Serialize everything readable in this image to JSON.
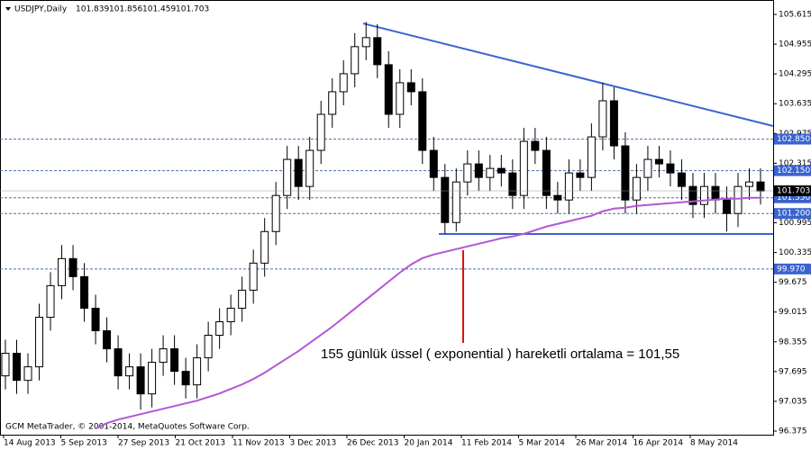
{
  "chart_data": {
    "type": "candlestick",
    "title": "USDJPY,Daily",
    "header_values": [
      101.839,
      101.856,
      101.459,
      101.703
    ],
    "copyright": "GCM MetaTrader, © 2001-2014, MetaQuotes Software Corp.",
    "annotation": "155 günlük üssel ( exponential ) hareketli ortalama = 101,55",
    "xlabels": [
      "14 Aug 2013",
      "5 Sep 2013",
      "27 Sep 2013",
      "21 Oct 2013",
      "11 Nov 2013",
      "3 Dec 2013",
      "26 Dec 2013",
      "20 Jan 2014",
      "11 Feb 2014",
      "5 Mar 2014",
      "26 Mar 2014",
      "16 Apr 2014",
      "8 May 2014"
    ],
    "ylim": [
      96.295,
      105.835
    ],
    "yticks": [
      105.615,
      104.955,
      104.295,
      103.635,
      102.975,
      102.315,
      101.655,
      100.995,
      100.335,
      99.675,
      99.015,
      98.355,
      97.695,
      97.035,
      96.375
    ],
    "open": [
      97.6,
      98.1,
      97.5,
      97.8,
      98.9,
      99.6,
      100.2,
      99.8,
      99.1,
      98.6,
      98.2,
      97.6,
      97.8,
      97.2,
      97.9,
      98.2,
      97.7,
      97.4,
      98.0,
      98.5,
      98.8,
      99.1,
      99.5,
      100.1,
      100.8,
      101.6,
      102.4,
      101.8,
      102.6,
      103.4,
      103.9,
      104.3,
      104.9,
      105.1,
      104.5,
      103.4,
      104.1,
      103.9,
      102.6,
      102.0,
      101.0,
      101.9,
      102.3,
      102.0,
      102.2,
      102.1,
      101.6,
      102.8,
      102.6,
      101.6,
      101.5,
      102.1,
      102.0,
      102.9,
      103.7,
      102.7,
      101.5,
      102.0,
      102.4,
      102.3,
      102.1,
      101.8,
      101.4,
      101.8,
      101.5,
      101.2,
      101.8,
      101.9
    ],
    "high": [
      98.4,
      98.4,
      98.1,
      99.2,
      99.9,
      100.5,
      100.5,
      100.1,
      99.4,
      98.9,
      98.5,
      98.1,
      98.1,
      98.2,
      98.5,
      98.5,
      98.0,
      98.3,
      98.8,
      99.1,
      99.4,
      99.8,
      100.4,
      101.1,
      101.9,
      102.7,
      102.7,
      102.9,
      103.7,
      104.2,
      104.6,
      105.2,
      105.45,
      105.4,
      104.8,
      104.4,
      104.4,
      104.2,
      102.9,
      102.3,
      102.2,
      102.6,
      102.6,
      102.5,
      102.5,
      102.4,
      103.1,
      103.1,
      102.9,
      101.9,
      102.4,
      102.4,
      103.2,
      104.1,
      104.0,
      103.0,
      102.3,
      102.7,
      102.7,
      102.6,
      102.4,
      102.1,
      102.1,
      102.1,
      101.8,
      102.1,
      102.2,
      102.2
    ],
    "low": [
      97.3,
      97.2,
      97.2,
      97.5,
      98.6,
      99.3,
      99.5,
      98.8,
      98.3,
      97.9,
      97.3,
      97.3,
      96.85,
      96.9,
      97.6,
      97.4,
      97.1,
      97.1,
      97.7,
      98.2,
      98.5,
      98.8,
      99.2,
      99.8,
      100.5,
      101.3,
      101.5,
      101.5,
      102.3,
      103.1,
      103.6,
      104.0,
      104.6,
      104.2,
      103.1,
      103.1,
      103.6,
      102.3,
      101.7,
      100.75,
      100.8,
      101.6,
      101.7,
      101.7,
      101.8,
      101.3,
      101.3,
      102.3,
      101.3,
      101.2,
      101.2,
      101.7,
      101.7,
      102.6,
      102.4,
      101.2,
      101.2,
      101.7,
      102.0,
      101.8,
      101.5,
      101.1,
      101.1,
      101.2,
      100.8,
      100.9,
      101.5,
      101.4
    ],
    "close": [
      98.1,
      97.5,
      97.8,
      98.9,
      99.6,
      100.2,
      99.8,
      99.1,
      98.6,
      98.2,
      97.6,
      97.8,
      97.2,
      97.9,
      98.2,
      97.7,
      97.4,
      98.0,
      98.5,
      98.8,
      99.1,
      99.5,
      100.1,
      100.8,
      101.6,
      102.4,
      101.8,
      102.6,
      103.4,
      103.9,
      104.3,
      104.9,
      105.1,
      104.5,
      103.4,
      104.1,
      103.9,
      102.6,
      102.0,
      101.0,
      101.9,
      102.3,
      102.0,
      102.2,
      102.1,
      101.6,
      102.8,
      102.6,
      101.6,
      101.5,
      102.1,
      102.0,
      102.9,
      103.7,
      102.7,
      101.5,
      102.0,
      102.4,
      102.3,
      102.1,
      101.8,
      101.4,
      101.8,
      101.5,
      101.2,
      101.8,
      101.9,
      101.7
    ],
    "ema": {
      "color": "#b455d6",
      "values": [
        null,
        null,
        null,
        null,
        null,
        null,
        null,
        null,
        96.43,
        96.55,
        96.63,
        96.69,
        96.75,
        96.81,
        96.87,
        96.93,
        96.99,
        97.05,
        97.13,
        97.21,
        97.31,
        97.41,
        97.53,
        97.67,
        97.83,
        97.99,
        98.15,
        98.33,
        98.51,
        98.69,
        98.89,
        99.09,
        99.29,
        99.49,
        99.69,
        99.89,
        100.07,
        100.21,
        100.29,
        100.35,
        100.41,
        100.47,
        100.53,
        100.59,
        100.65,
        100.69,
        100.75,
        100.83,
        100.91,
        100.97,
        101.03,
        101.09,
        101.15,
        101.25,
        101.31,
        101.33,
        101.37,
        101.39,
        101.41,
        101.43,
        101.45,
        101.47,
        101.49,
        101.51,
        101.53,
        101.53,
        101.55,
        101.55
      ]
    },
    "levels": [
      {
        "value": 102.85,
        "label": "102.850"
      },
      {
        "value": 102.15,
        "label": "102.150"
      },
      {
        "value": 101.55,
        "label": "101.550"
      },
      {
        "value": 101.2,
        "label": "101.200"
      },
      {
        "value": 99.97,
        "label": "99.970"
      }
    ],
    "current_price": 101.703,
    "resistance": [
      105.415,
      103.14
    ],
    "support": 100.745,
    "line_color": "#3a63d0",
    "level_color": "#4d6fa8"
  }
}
